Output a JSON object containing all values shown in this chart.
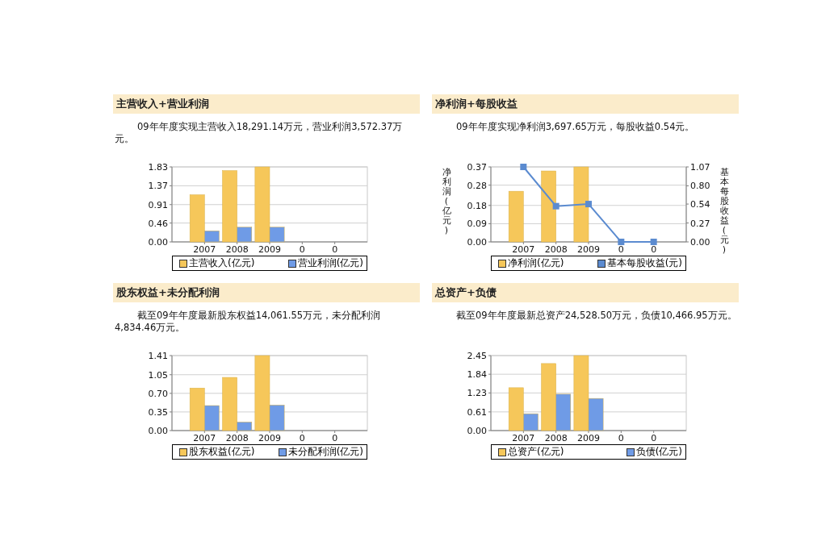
{
  "chart_data": [
    {
      "type": "bar",
      "title": "主营收入+营业利润",
      "subtitle": "09年年度实现主营收入18,291.14万元，营业利润3,572.37万元。",
      "categories": [
        "2007",
        "2008",
        "2009",
        "0",
        "0"
      ],
      "series": [
        {
          "name": "主营收入(亿元)",
          "color": "#f6c75a",
          "values": [
            1.15,
            1.74,
            1.83,
            0,
            0
          ]
        },
        {
          "name": "营业利润(亿元)",
          "color": "#6f9be6",
          "values": [
            0.27,
            0.36,
            0.36,
            0,
            0
          ]
        }
      ],
      "ylim": [
        0,
        1.83
      ],
      "yticks": [
        {
          "value": 0,
          "label": "0.00"
        },
        {
          "value": 0.46,
          "label": "0.46"
        },
        {
          "value": 0.91,
          "label": "0.91"
        },
        {
          "value": 1.37,
          "label": "1.37"
        },
        {
          "value": 1.83,
          "label": "1.83"
        }
      ],
      "grid": "y",
      "legend": "bottom"
    },
    {
      "type": "bar",
      "title": "净利润+每股收益",
      "subtitle": "09年年度实现净利润3,697.65万元，每股收益0.54元。",
      "categories": [
        "2007",
        "2008",
        "2009",
        "0",
        "0"
      ],
      "series": [
        {
          "name": "净利润(亿元)",
          "color": "#f6c75a",
          "values": [
            0.25,
            0.35,
            0.37,
            0,
            0
          ]
        },
        {
          "name": "基本每股收益(元)",
          "color": "#5b8bd0",
          "type": "line",
          "axis": "y2",
          "values": [
            1.07,
            0.51,
            0.54,
            0,
            0
          ]
        }
      ],
      "ylabel": "净利润(亿元)",
      "y2label": "基本每股收益(元)",
      "ylim": [
        0,
        0.37
      ],
      "yticks": [
        {
          "value": 0,
          "label": "0.00"
        },
        {
          "value": 0.09,
          "label": "0.09"
        },
        {
          "value": 0.18,
          "label": "0.18"
        },
        {
          "value": 0.28,
          "label": "0.28"
        },
        {
          "value": 0.37,
          "label": "0.37"
        }
      ],
      "y2lim": [
        0,
        1.07
      ],
      "y2ticks": [
        {
          "value": 0,
          "label": "0.00"
        },
        {
          "value": 0.27,
          "label": "0.27"
        },
        {
          "value": 0.54,
          "label": "0.54"
        },
        {
          "value": 0.8,
          "label": "0.80"
        },
        {
          "value": 1.07,
          "label": "1.07"
        }
      ],
      "marker": "square",
      "grid": "y",
      "legend": "bottom"
    },
    {
      "type": "bar",
      "title": "股东权益+未分配利润",
      "subtitle": "截至09年年度最新股东权益14,061.55万元，未分配利润4,834.46万元。",
      "categories": [
        "2007",
        "2008",
        "2009",
        "0",
        "0"
      ],
      "series": [
        {
          "name": "股东权益(亿元)",
          "color": "#f6c75a",
          "values": [
            0.8,
            1.0,
            1.41,
            0,
            0
          ]
        },
        {
          "name": "未分配利润(亿元)",
          "color": "#6f9be6",
          "values": [
            0.47,
            0.16,
            0.48,
            0,
            0
          ]
        }
      ],
      "ylim": [
        0,
        1.41
      ],
      "yticks": [
        {
          "value": 0,
          "label": "0.00"
        },
        {
          "value": 0.35,
          "label": "0.35"
        },
        {
          "value": 0.7,
          "label": "0.70"
        },
        {
          "value": 1.05,
          "label": "1.05"
        },
        {
          "value": 1.41,
          "label": "1.41"
        }
      ],
      "grid": "y",
      "legend": "bottom"
    },
    {
      "type": "bar",
      "title": "总资产+负债",
      "subtitle": "截至09年年度最新总资产24,528.50万元，负债10,466.95万元。",
      "categories": [
        "2007",
        "2008",
        "2009",
        "0",
        "0"
      ],
      "series": [
        {
          "name": "总资产(亿元)",
          "color": "#f6c75a",
          "values": [
            1.4,
            2.19,
            2.45,
            0,
            0
          ]
        },
        {
          "name": "负债(亿元)",
          "color": "#6f9be6",
          "values": [
            0.55,
            1.19,
            1.05,
            0,
            0
          ]
        }
      ],
      "ylim": [
        0,
        2.45
      ],
      "yticks": [
        {
          "value": 0,
          "label": "0.00"
        },
        {
          "value": 0.61,
          "label": "0.61"
        },
        {
          "value": 1.23,
          "label": "1.23"
        },
        {
          "value": 1.84,
          "label": "1.84"
        },
        {
          "value": 2.45,
          "label": "2.45"
        }
      ],
      "grid": "y",
      "legend": "bottom"
    }
  ]
}
